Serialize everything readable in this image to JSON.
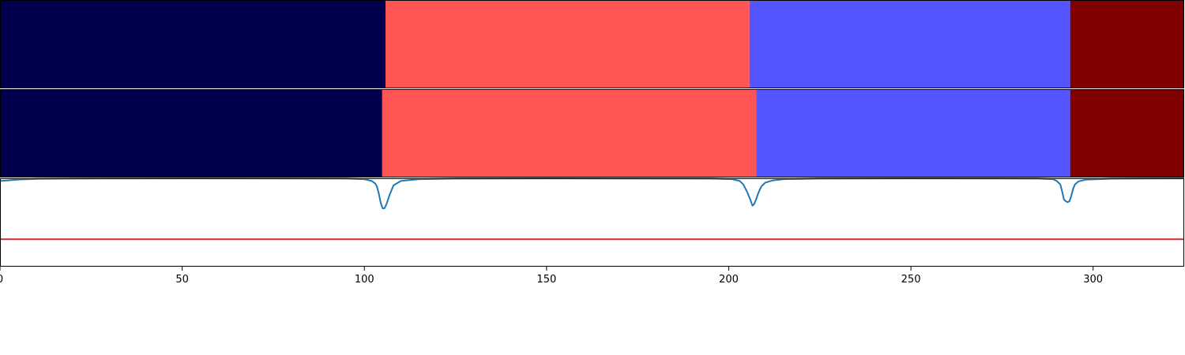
{
  "chart_data": [
    {
      "type": "heatmap",
      "panel": "segmentation-bar-top",
      "xlim": [
        0,
        325
      ],
      "segments": [
        {
          "start": 0,
          "end": 105.8,
          "color": "#00004c"
        },
        {
          "start": 105.8,
          "end": 205.7,
          "color": "#ff5555"
        },
        {
          "start": 205.7,
          "end": 293.7,
          "color": "#5555ff"
        },
        {
          "start": 293.7,
          "end": 325,
          "color": "#7f0000"
        }
      ]
    },
    {
      "type": "heatmap",
      "panel": "segmentation-bar-bottom",
      "xlim": [
        0,
        325
      ],
      "segments": [
        {
          "start": 0,
          "end": 104.9,
          "color": "#00004c"
        },
        {
          "start": 104.9,
          "end": 207.6,
          "color": "#ff5555"
        },
        {
          "start": 207.6,
          "end": 293.7,
          "color": "#5555ff"
        },
        {
          "start": 293.7,
          "end": 325,
          "color": "#7f0000"
        }
      ]
    },
    {
      "type": "line",
      "panel": "line-plot",
      "xlim": [
        0,
        325
      ],
      "ylim": [
        0,
        1
      ],
      "xticks": [
        0,
        50,
        100,
        150,
        200,
        250,
        300
      ],
      "series": [
        {
          "color": "#1f77b4",
          "x": [
            0,
            2,
            5,
            10,
            20,
            50,
            95,
            100,
            102,
            103,
            103.5,
            104,
            104.5,
            105,
            105.5,
            106,
            107,
            108,
            110,
            115,
            125,
            150,
            195,
            201,
            203,
            204,
            205,
            206,
            206.5,
            207,
            207.5,
            208,
            208.5,
            209,
            210,
            212,
            215,
            225,
            250,
            285,
            289,
            290,
            291,
            291.5,
            292,
            292.5,
            293,
            293.5,
            294,
            294.5,
            295,
            296,
            298,
            305,
            315,
            325
          ],
          "y": [
            0.97,
            0.975,
            0.985,
            0.993,
            0.997,
            0.999,
            0.997,
            0.99,
            0.97,
            0.94,
            0.9,
            0.82,
            0.72,
            0.66,
            0.66,
            0.7,
            0.82,
            0.92,
            0.97,
            0.99,
            0.997,
            0.999,
            0.997,
            0.99,
            0.97,
            0.93,
            0.85,
            0.75,
            0.69,
            0.71,
            0.76,
            0.82,
            0.87,
            0.91,
            0.95,
            0.975,
            0.99,
            0.997,
            0.999,
            0.997,
            0.99,
            0.97,
            0.93,
            0.85,
            0.76,
            0.74,
            0.73,
            0.74,
            0.8,
            0.88,
            0.93,
            0.965,
            0.985,
            0.995,
            0.998,
            0.999
          ]
        },
        {
          "color": "#d62728",
          "x": [
            0,
            325
          ],
          "y": [
            0.31,
            0.31
          ]
        }
      ]
    }
  ]
}
